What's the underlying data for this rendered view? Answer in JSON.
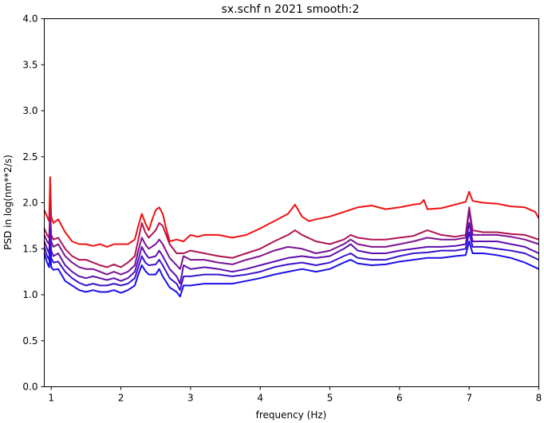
{
  "chart_data": {
    "type": "line",
    "title": "sx.schf n 2021 smooth:2",
    "xlabel": "frequency (Hz)",
    "ylabel": "PSD in log(nm**2/s)",
    "xlim": [
      0.9,
      8
    ],
    "ylim": [
      0,
      4
    ],
    "xticks": [
      1,
      2,
      3,
      4,
      5,
      6,
      7,
      8
    ],
    "yticks": [
      0.0,
      0.5,
      1.0,
      1.5,
      2.0,
      2.5,
      3.0,
      3.5,
      4.0
    ],
    "grid": false,
    "legend": "none",
    "series": [
      {
        "color": "#ee1111",
        "x": [
          0.9,
          0.94,
          0.97,
          0.985,
          1.0,
          1.03,
          1.1,
          1.2,
          1.3,
          1.4,
          1.5,
          1.6,
          1.7,
          1.8,
          1.9,
          2.0,
          2.1,
          2.2,
          2.25,
          2.3,
          2.35,
          2.4,
          2.45,
          2.5,
          2.55,
          2.6,
          2.65,
          2.7,
          2.8,
          2.9,
          3.0,
          3.1,
          3.2,
          3.4,
          3.6,
          3.8,
          4.0,
          4.2,
          4.4,
          4.5,
          4.6,
          4.7,
          4.8,
          5.0,
          5.2,
          5.4,
          5.6,
          5.8,
          6.0,
          6.2,
          6.3,
          6.35,
          6.4,
          6.6,
          6.8,
          6.95,
          7.0,
          7.05,
          7.2,
          7.4,
          7.6,
          7.8,
          7.95,
          8.0
        ],
        "y": [
          1.92,
          1.85,
          1.8,
          2.28,
          1.85,
          1.78,
          1.82,
          1.68,
          1.58,
          1.55,
          1.55,
          1.53,
          1.55,
          1.52,
          1.55,
          1.55,
          1.55,
          1.6,
          1.75,
          1.88,
          1.78,
          1.7,
          1.82,
          1.92,
          1.95,
          1.88,
          1.72,
          1.58,
          1.6,
          1.58,
          1.65,
          1.63,
          1.65,
          1.65,
          1.62,
          1.65,
          1.72,
          1.8,
          1.88,
          1.98,
          1.85,
          1.8,
          1.82,
          1.85,
          1.9,
          1.95,
          1.97,
          1.93,
          1.95,
          1.98,
          1.99,
          2.03,
          1.93,
          1.94,
          1.98,
          2.01,
          2.12,
          2.02,
          2.0,
          1.99,
          1.96,
          1.95,
          1.9,
          1.83
        ]
      },
      {
        "color": "#b01252",
        "x": [
          0.9,
          0.94,
          0.97,
          0.985,
          1.0,
          1.03,
          1.1,
          1.2,
          1.3,
          1.4,
          1.5,
          1.6,
          1.7,
          1.8,
          1.9,
          2.0,
          2.1,
          2.2,
          2.25,
          2.3,
          2.35,
          2.4,
          2.5,
          2.55,
          2.6,
          2.7,
          2.8,
          2.9,
          3.0,
          3.2,
          3.4,
          3.6,
          3.8,
          4.0,
          4.2,
          4.4,
          4.5,
          4.6,
          4.8,
          5.0,
          5.2,
          5.3,
          5.4,
          5.6,
          5.8,
          6.0,
          6.2,
          6.4,
          6.6,
          6.8,
          6.95,
          7.0,
          7.05,
          7.2,
          7.4,
          7.6,
          7.8,
          8.0
        ],
        "y": [
          1.72,
          1.65,
          1.62,
          1.92,
          1.65,
          1.6,
          1.62,
          1.5,
          1.42,
          1.38,
          1.38,
          1.35,
          1.32,
          1.3,
          1.33,
          1.3,
          1.35,
          1.42,
          1.6,
          1.78,
          1.68,
          1.62,
          1.7,
          1.78,
          1.75,
          1.55,
          1.45,
          1.45,
          1.48,
          1.45,
          1.42,
          1.4,
          1.45,
          1.5,
          1.58,
          1.65,
          1.7,
          1.65,
          1.58,
          1.55,
          1.6,
          1.65,
          1.62,
          1.6,
          1.6,
          1.62,
          1.64,
          1.7,
          1.65,
          1.63,
          1.65,
          1.95,
          1.7,
          1.68,
          1.68,
          1.66,
          1.65,
          1.6
        ]
      },
      {
        "color": "#7a1290",
        "x": [
          0.9,
          0.94,
          0.97,
          0.985,
          1.0,
          1.03,
          1.1,
          1.2,
          1.3,
          1.4,
          1.5,
          1.6,
          1.7,
          1.8,
          1.9,
          2.0,
          2.1,
          2.2,
          2.25,
          2.3,
          2.35,
          2.4,
          2.5,
          2.55,
          2.6,
          2.7,
          2.8,
          2.85,
          2.9,
          3.0,
          3.2,
          3.4,
          3.6,
          3.8,
          4.0,
          4.2,
          4.4,
          4.6,
          4.8,
          5.0,
          5.2,
          5.3,
          5.4,
          5.6,
          5.8,
          6.0,
          6.2,
          6.4,
          6.6,
          6.8,
          6.95,
          7.0,
          7.05,
          7.2,
          7.4,
          7.6,
          7.8,
          8.0
        ],
        "y": [
          1.65,
          1.58,
          1.55,
          1.82,
          1.58,
          1.52,
          1.55,
          1.42,
          1.35,
          1.3,
          1.28,
          1.28,
          1.25,
          1.22,
          1.25,
          1.22,
          1.25,
          1.32,
          1.48,
          1.62,
          1.55,
          1.5,
          1.55,
          1.6,
          1.55,
          1.4,
          1.32,
          1.28,
          1.42,
          1.38,
          1.38,
          1.35,
          1.33,
          1.38,
          1.42,
          1.48,
          1.52,
          1.5,
          1.45,
          1.48,
          1.55,
          1.6,
          1.55,
          1.52,
          1.52,
          1.55,
          1.58,
          1.62,
          1.6,
          1.6,
          1.62,
          1.92,
          1.65,
          1.65,
          1.65,
          1.63,
          1.6,
          1.55
        ]
      },
      {
        "color": "#5a0fb0",
        "x": [
          0.9,
          0.94,
          0.97,
          0.985,
          1.0,
          1.03,
          1.1,
          1.2,
          1.3,
          1.4,
          1.5,
          1.6,
          1.7,
          1.8,
          1.9,
          2.0,
          2.1,
          2.2,
          2.25,
          2.3,
          2.35,
          2.4,
          2.5,
          2.55,
          2.6,
          2.7,
          2.8,
          2.85,
          2.9,
          3.0,
          3.2,
          3.4,
          3.6,
          3.8,
          4.0,
          4.2,
          4.4,
          4.6,
          4.8,
          5.0,
          5.2,
          5.3,
          5.4,
          5.6,
          5.8,
          6.0,
          6.2,
          6.4,
          6.6,
          6.8,
          6.95,
          7.0,
          7.05,
          7.2,
          7.4,
          7.6,
          7.8,
          8.0
        ],
        "y": [
          1.58,
          1.5,
          1.45,
          1.72,
          1.48,
          1.42,
          1.45,
          1.32,
          1.25,
          1.2,
          1.18,
          1.2,
          1.18,
          1.16,
          1.18,
          1.15,
          1.18,
          1.25,
          1.38,
          1.52,
          1.45,
          1.4,
          1.42,
          1.48,
          1.42,
          1.28,
          1.2,
          1.12,
          1.32,
          1.28,
          1.3,
          1.28,
          1.25,
          1.28,
          1.32,
          1.36,
          1.4,
          1.42,
          1.4,
          1.42,
          1.5,
          1.55,
          1.48,
          1.45,
          1.45,
          1.48,
          1.5,
          1.52,
          1.52,
          1.53,
          1.55,
          1.78,
          1.58,
          1.58,
          1.58,
          1.55,
          1.52,
          1.45
        ]
      },
      {
        "color": "#3a13cc",
        "x": [
          0.9,
          0.94,
          0.97,
          0.985,
          1.0,
          1.03,
          1.1,
          1.2,
          1.3,
          1.4,
          1.5,
          1.6,
          1.7,
          1.8,
          1.9,
          2.0,
          2.1,
          2.2,
          2.25,
          2.3,
          2.35,
          2.4,
          2.5,
          2.55,
          2.6,
          2.7,
          2.8,
          2.85,
          2.9,
          3.0,
          3.2,
          3.4,
          3.6,
          3.8,
          4.0,
          4.2,
          4.4,
          4.6,
          4.8,
          5.0,
          5.2,
          5.3,
          5.4,
          5.6,
          5.8,
          6.0,
          6.2,
          6.4,
          6.6,
          6.8,
          6.95,
          7.0,
          7.05,
          7.2,
          7.4,
          7.6,
          7.8,
          8.0
        ],
        "y": [
          1.52,
          1.42,
          1.38,
          1.6,
          1.4,
          1.35,
          1.36,
          1.25,
          1.18,
          1.13,
          1.1,
          1.12,
          1.1,
          1.1,
          1.12,
          1.1,
          1.12,
          1.18,
          1.3,
          1.42,
          1.35,
          1.32,
          1.33,
          1.38,
          1.32,
          1.18,
          1.12,
          1.05,
          1.2,
          1.2,
          1.22,
          1.22,
          1.2,
          1.22,
          1.25,
          1.3,
          1.33,
          1.35,
          1.32,
          1.35,
          1.42,
          1.45,
          1.4,
          1.38,
          1.38,
          1.42,
          1.45,
          1.46,
          1.48,
          1.48,
          1.5,
          1.68,
          1.52,
          1.52,
          1.5,
          1.48,
          1.45,
          1.38
        ]
      },
      {
        "color": "#1a10e8",
        "x": [
          0.9,
          0.94,
          0.97,
          0.985,
          1.0,
          1.03,
          1.1,
          1.2,
          1.3,
          1.4,
          1.5,
          1.6,
          1.7,
          1.8,
          1.9,
          2.0,
          2.1,
          2.2,
          2.25,
          2.3,
          2.35,
          2.4,
          2.5,
          2.55,
          2.6,
          2.7,
          2.8,
          2.85,
          2.9,
          3.0,
          3.2,
          3.4,
          3.6,
          3.8,
          4.0,
          4.2,
          4.4,
          4.6,
          4.8,
          5.0,
          5.2,
          5.3,
          5.4,
          5.6,
          5.8,
          6.0,
          6.2,
          6.4,
          6.6,
          6.8,
          6.95,
          7.0,
          7.05,
          7.2,
          7.4,
          7.6,
          7.8,
          8.0
        ],
        "y": [
          1.45,
          1.35,
          1.3,
          1.5,
          1.3,
          1.27,
          1.28,
          1.15,
          1.1,
          1.05,
          1.03,
          1.05,
          1.03,
          1.03,
          1.05,
          1.02,
          1.05,
          1.1,
          1.22,
          1.32,
          1.26,
          1.22,
          1.22,
          1.28,
          1.2,
          1.08,
          1.03,
          0.98,
          1.1,
          1.1,
          1.12,
          1.12,
          1.12,
          1.15,
          1.18,
          1.22,
          1.25,
          1.28,
          1.25,
          1.28,
          1.35,
          1.38,
          1.34,
          1.32,
          1.33,
          1.36,
          1.38,
          1.4,
          1.4,
          1.42,
          1.43,
          1.58,
          1.45,
          1.45,
          1.43,
          1.4,
          1.35,
          1.28
        ]
      }
    ]
  }
}
